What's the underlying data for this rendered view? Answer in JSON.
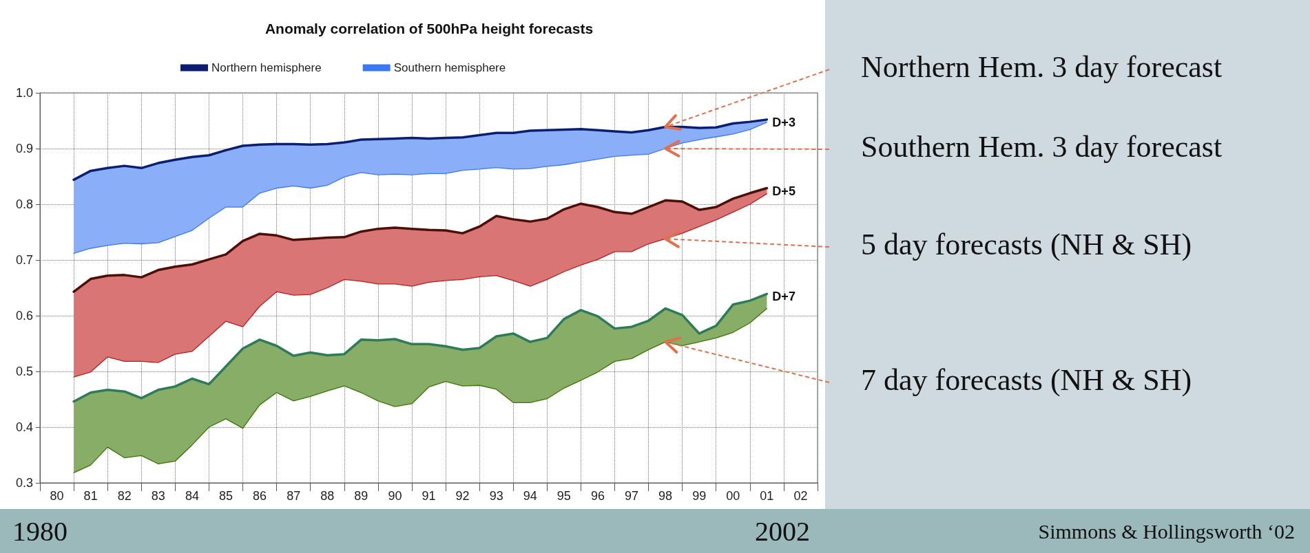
{
  "chart_data": {
    "type": "line",
    "title": "Anomaly correlation of 500hPa height forecasts",
    "categories": [
      null,
      "80",
      null,
      "81",
      null,
      "82",
      null,
      "83",
      null,
      "84",
      null,
      "85",
      null,
      "86",
      null,
      "87",
      null,
      "88",
      null,
      "89",
      null,
      "90",
      null,
      "91",
      null,
      "92",
      null,
      "93",
      null,
      "94",
      null,
      "95",
      null,
      "96",
      null,
      "97",
      null,
      "98",
      null,
      "99",
      null,
      "00",
      null,
      "01",
      null,
      "02",
      null
    ],
    "series": [
      {
        "name": "Northern hemisphere",
        "color": "#0c1f6e",
        "values": [
          null,
          null,
          0.844,
          0.86,
          0.865,
          0.869,
          0.865,
          0.874,
          0.88,
          0.885,
          0.888,
          0.897,
          0.905,
          0.907,
          0.908,
          0.908,
          0.907,
          0.908,
          0.911,
          0.916,
          0.917,
          0.918,
          0.919,
          0.918,
          0.919,
          0.92,
          0.924,
          0.928,
          0.928,
          0.932,
          0.933,
          0.934,
          0.935,
          0.933,
          0.931,
          0.929,
          0.933,
          0.939,
          0.939,
          0.937,
          0.938,
          0.945,
          0.948,
          0.952,
          null,
          null,
          null
        ]
      },
      {
        "name": "Southern hemisphere",
        "color": "#3c78f2",
        "values": [
          null,
          null,
          0.712,
          0.721,
          0.726,
          0.73,
          0.729,
          0.731,
          0.742,
          0.753,
          0.775,
          0.795,
          0.795,
          0.82,
          0.829,
          0.833,
          0.829,
          0.834,
          0.849,
          0.857,
          0.853,
          0.854,
          0.853,
          0.855,
          0.855,
          0.861,
          0.863,
          0.866,
          0.863,
          0.864,
          0.868,
          0.871,
          0.876,
          0.881,
          0.886,
          0.888,
          0.89,
          0.9,
          0.91,
          0.916,
          0.921,
          0.926,
          0.934,
          0.947,
          null,
          null,
          null
        ],
        "lower": [
          null,
          null,
          0.712,
          0.721,
          0.726,
          0.73,
          0.729,
          0.731,
          0.742,
          0.753,
          0.775,
          0.795,
          0.795,
          0.82,
          0.829,
          0.833,
          0.829,
          0.834,
          0.849,
          0.857,
          0.853,
          0.854,
          0.853,
          0.855,
          0.855,
          0.861,
          0.863,
          0.866,
          0.863,
          0.864,
          0.868,
          0.871,
          0.876,
          0.881,
          0.886,
          0.888,
          0.89,
          0.9,
          0.91,
          0.916,
          0.921,
          0.926,
          0.934,
          0.947,
          null,
          null,
          null
        ],
        "upper": [
          null,
          null,
          0.844,
          0.86,
          0.865,
          0.869,
          0.865,
          0.874,
          0.88,
          0.885,
          0.888,
          0.897,
          0.905,
          0.907,
          0.908,
          0.908,
          0.907,
          0.908,
          0.911,
          0.916,
          0.917,
          0.918,
          0.919,
          0.918,
          0.919,
          0.92,
          0.924,
          0.928,
          0.928,
          0.932,
          0.933,
          0.934,
          0.935,
          0.933,
          0.931,
          0.929,
          0.933,
          0.939,
          0.939,
          0.937,
          0.938,
          0.945,
          0.948,
          0.952,
          null,
          null,
          null
        ]
      },
      {
        "color": "#4a0f08",
        "values": [
          null,
          null,
          0.643,
          0.666,
          0.672,
          0.673,
          0.669,
          0.682,
          0.688,
          0.692,
          0.701,
          0.71,
          0.734,
          0.747,
          0.744,
          0.736,
          0.738,
          0.74,
          0.741,
          0.751,
          0.756,
          0.758,
          0.756,
          0.754,
          0.753,
          0.748,
          0.76,
          0.779,
          0.773,
          0.769,
          0.774,
          0.791,
          0.801,
          0.795,
          0.786,
          0.783,
          0.795,
          0.807,
          0.805,
          0.79,
          0.795,
          0.81,
          0.82,
          0.829,
          null,
          null,
          null
        ]
      },
      {
        "color": "#c01919",
        "values": [
          null,
          null,
          0.49,
          0.499,
          0.526,
          0.518,
          0.518,
          0.516,
          0.531,
          0.536,
          0.563,
          0.59,
          0.58,
          0.617,
          0.643,
          0.637,
          0.638,
          0.65,
          0.665,
          0.662,
          0.657,
          0.657,
          0.653,
          0.66,
          0.663,
          0.665,
          0.67,
          0.672,
          0.663,
          0.653,
          0.665,
          0.679,
          0.691,
          0.701,
          0.715,
          0.715,
          0.729,
          0.738,
          0.748,
          0.76,
          0.772,
          0.786,
          0.8,
          0.819,
          null,
          null,
          null
        ],
        "lower": [
          null,
          null,
          0.49,
          0.499,
          0.526,
          0.518,
          0.518,
          0.516,
          0.531,
          0.536,
          0.563,
          0.59,
          0.58,
          0.617,
          0.643,
          0.637,
          0.638,
          0.65,
          0.665,
          0.662,
          0.657,
          0.657,
          0.653,
          0.66,
          0.663,
          0.665,
          0.67,
          0.672,
          0.663,
          0.653,
          0.665,
          0.679,
          0.691,
          0.701,
          0.715,
          0.715,
          0.729,
          0.738,
          0.748,
          0.76,
          0.772,
          0.786,
          0.8,
          0.819,
          null,
          null,
          null
        ],
        "upper": [
          null,
          null,
          0.643,
          0.666,
          0.672,
          0.673,
          0.669,
          0.682,
          0.688,
          0.692,
          0.701,
          0.71,
          0.734,
          0.747,
          0.744,
          0.736,
          0.738,
          0.74,
          0.741,
          0.751,
          0.756,
          0.758,
          0.756,
          0.754,
          0.753,
          0.748,
          0.76,
          0.779,
          0.773,
          0.769,
          0.774,
          0.791,
          0.801,
          0.795,
          0.786,
          0.783,
          0.795,
          0.807,
          0.805,
          0.79,
          0.795,
          0.81,
          0.82,
          0.829,
          null,
          null,
          null
        ]
      },
      {
        "color": "#2e7a5a",
        "values": [
          null,
          null,
          0.446,
          0.462,
          0.467,
          0.464,
          0.452,
          0.467,
          0.473,
          0.487,
          0.477,
          0.509,
          0.541,
          0.557,
          0.546,
          0.528,
          0.534,
          0.529,
          0.531,
          0.557,
          0.556,
          0.558,
          0.549,
          0.549,
          0.545,
          0.539,
          0.542,
          0.563,
          0.568,
          0.553,
          0.56,
          0.594,
          0.61,
          0.599,
          0.577,
          0.58,
          0.591,
          0.613,
          0.601,
          0.568,
          0.582,
          0.62,
          0.627,
          0.639,
          null,
          null,
          null
        ]
      },
      {
        "color": "#397600",
        "values": [
          null,
          null,
          0.318,
          0.332,
          0.364,
          0.345,
          0.349,
          0.334,
          0.339,
          0.368,
          0.4,
          0.415,
          0.398,
          0.44,
          0.462,
          0.447,
          0.455,
          0.465,
          0.474,
          0.462,
          0.447,
          0.437,
          0.442,
          0.472,
          0.482,
          0.474,
          0.475,
          0.468,
          0.444,
          0.444,
          0.451,
          0.47,
          0.484,
          0.499,
          0.518,
          0.523,
          0.539,
          0.553,
          0.546,
          0.553,
          0.56,
          0.57,
          0.587,
          0.613,
          null,
          null,
          null
        ],
        "lower": [
          null,
          null,
          0.318,
          0.332,
          0.364,
          0.345,
          0.349,
          0.334,
          0.339,
          0.368,
          0.4,
          0.415,
          0.398,
          0.44,
          0.462,
          0.447,
          0.455,
          0.465,
          0.474,
          0.462,
          0.447,
          0.437,
          0.442,
          0.472,
          0.482,
          0.474,
          0.475,
          0.468,
          0.444,
          0.444,
          0.451,
          0.47,
          0.484,
          0.499,
          0.518,
          0.523,
          0.539,
          0.553,
          0.546,
          0.553,
          0.56,
          0.57,
          0.587,
          0.613,
          null,
          null,
          null
        ],
        "upper": [
          null,
          null,
          0.446,
          0.462,
          0.467,
          0.464,
          0.452,
          0.467,
          0.473,
          0.487,
          0.477,
          0.509,
          0.541,
          0.557,
          0.546,
          0.528,
          0.534,
          0.529,
          0.531,
          0.557,
          0.556,
          0.558,
          0.549,
          0.549,
          0.545,
          0.539,
          0.542,
          0.563,
          0.568,
          0.553,
          0.56,
          0.594,
          0.61,
          0.599,
          0.577,
          0.58,
          0.591,
          0.613,
          0.601,
          0.568,
          0.582,
          0.62,
          0.627,
          0.639,
          null,
          null,
          null
        ]
      }
    ],
    "ylim": [
      0.3,
      1.0
    ],
    "yticks": [
      0.3,
      0.4,
      0.5,
      0.6,
      0.7,
      0.8,
      0.9,
      {
        "value": 1.0,
        "label": "1.0"
      }
    ],
    "grid": true,
    "legend": "top",
    "annotations": [
      {
        "text": "D+3",
        "x": "01",
        "y": 0.952
      },
      {
        "text": "D+5",
        "x": "01",
        "y": 0.829
      },
      {
        "text": "D+7",
        "x": "01",
        "y": 0.639
      },
      {
        "text": "Northern Hem. 3 day forecast",
        "x": "98",
        "y": 0.939
      },
      {
        "text": "Southern Hem. 3 day forecast",
        "x": "98",
        "y": 0.9
      },
      {
        "text": "5 day forecasts (NH & SH)",
        "x": "98",
        "y": 0.738
      },
      {
        "text": "7 day forecasts (NH & SH)",
        "x": "98",
        "y": 0.553
      },
      "1980",
      "2002",
      "Simmons & Hollingsworth ‘02"
    ]
  }
}
